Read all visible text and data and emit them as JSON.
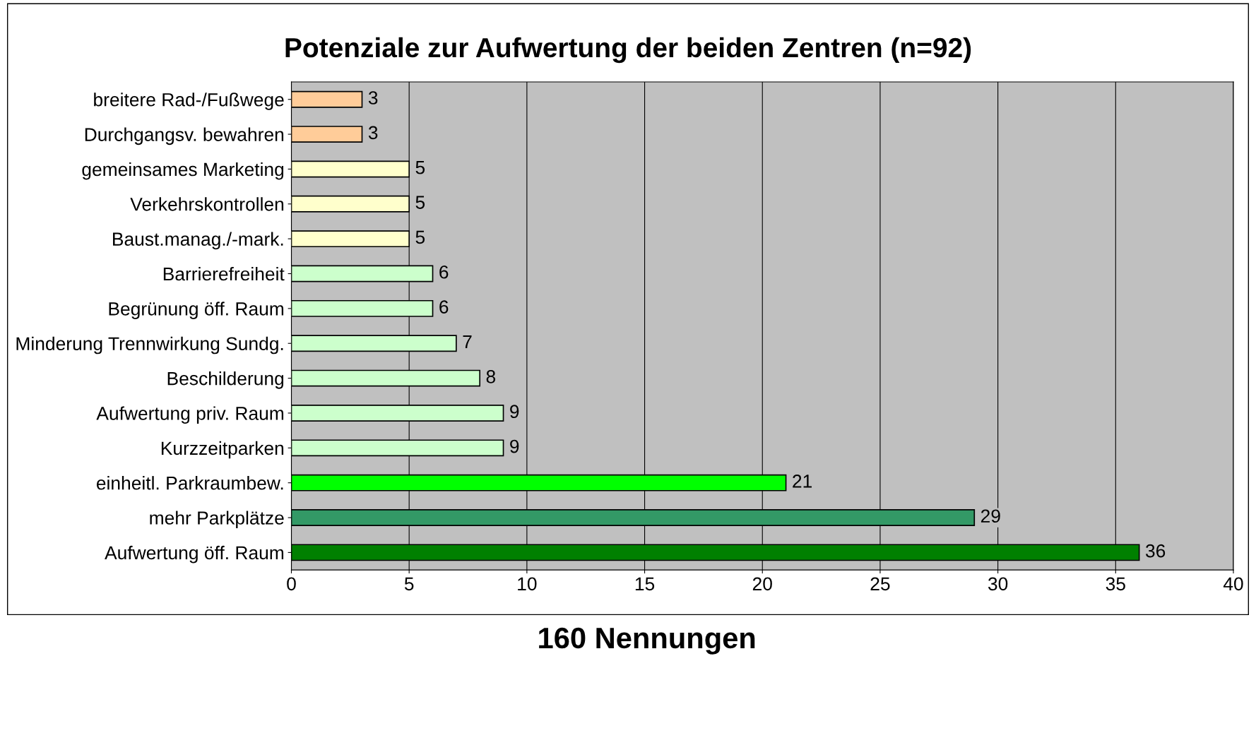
{
  "chart_data": {
    "type": "bar",
    "orientation": "horizontal",
    "title": "Potenziale zur Aufwertung der beiden Zentren (n=92)",
    "categories": [
      "breitere Rad-/Fußwege",
      "Durchgangsv. bewahren",
      "gemeinsames Marketing",
      "Verkehrskontrollen",
      "Baust.manag./-mark.",
      "Barrierefreiheit",
      "Begrünung öff. Raum",
      "Minderung Trennwirkung Sundg.",
      "Beschilderung",
      "Aufwertung priv. Raum",
      "Kurzzeitparken",
      "einheitl. Parkraumbew.",
      "mehr Parkplätze",
      "Aufwertung öff. Raum"
    ],
    "values": [
      3,
      3,
      5,
      5,
      5,
      6,
      6,
      7,
      8,
      9,
      9,
      21,
      29,
      36
    ],
    "colors": [
      "#ffcc99",
      "#ffcc99",
      "#ffffcc",
      "#ffffcc",
      "#ffffcc",
      "#ccffcc",
      "#ccffcc",
      "#ccffcc",
      "#ccffcc",
      "#ccffcc",
      "#ccffcc",
      "#00ff00",
      "#339966",
      "#008000"
    ],
    "xlim": [
      0,
      40
    ],
    "xticks": [
      0,
      5,
      10,
      15,
      20,
      25,
      30,
      35,
      40
    ],
    "grid": "x",
    "data_labels": true,
    "legend": false,
    "annotations": [
      "160 Nennungen"
    ]
  }
}
